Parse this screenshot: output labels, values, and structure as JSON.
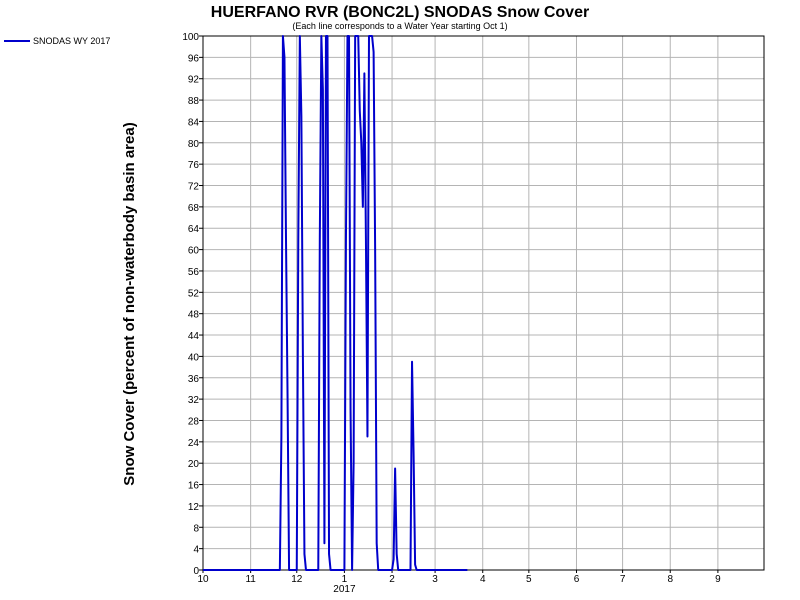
{
  "chart_data": {
    "type": "line",
    "title": "HUERFANO RVR (BONC2L) SNODAS Snow Cover",
    "subtitle": "(Each line corresponds to a Water Year starting Oct 1)",
    "ylabel": "Snow Cover (percent of non-waterbody basin area)",
    "xlabel": "",
    "ylim": [
      0,
      100
    ],
    "yticks": [
      0,
      4,
      8,
      12,
      16,
      20,
      24,
      28,
      32,
      36,
      40,
      44,
      48,
      52,
      56,
      60,
      64,
      68,
      72,
      76,
      80,
      84,
      88,
      92,
      96,
      100
    ],
    "xticks": [
      {
        "date": "2016-10-01",
        "label": "10"
      },
      {
        "date": "2016-11-01",
        "label": "11"
      },
      {
        "date": "2016-12-01",
        "label": "12"
      },
      {
        "date": "2017-01-01",
        "label": "1"
      },
      {
        "date": "2017-02-01",
        "label": "2"
      },
      {
        "date": "2017-03-01",
        "label": "3"
      },
      {
        "date": "2017-04-01",
        "label": "4"
      },
      {
        "date": "2017-05-01",
        "label": "5"
      },
      {
        "date": "2017-06-01",
        "label": "6"
      },
      {
        "date": "2017-07-01",
        "label": "7"
      },
      {
        "date": "2017-08-01",
        "label": "8"
      },
      {
        "date": "2017-09-01",
        "label": "9"
      }
    ],
    "year_label": {
      "date": "2017-01-01",
      "label": "2017"
    },
    "xlim": [
      "2016-10-01",
      "2017-10-01"
    ],
    "grid": true,
    "legend_position": "top-left",
    "series": [
      {
        "name": "SNODAS WY 2017",
        "color": "#0000cc",
        "points": [
          [
            "2016-10-01",
            0
          ],
          [
            "2016-11-20",
            0
          ],
          [
            "2016-11-21",
            25
          ],
          [
            "2016-11-22",
            100
          ],
          [
            "2016-11-23",
            96
          ],
          [
            "2016-11-24",
            62
          ],
          [
            "2016-11-25",
            33
          ],
          [
            "2016-11-26",
            0
          ],
          [
            "2016-12-01",
            0
          ],
          [
            "2016-12-02",
            62
          ],
          [
            "2016-12-03",
            100
          ],
          [
            "2016-12-04",
            85
          ],
          [
            "2016-12-05",
            40
          ],
          [
            "2016-12-06",
            3
          ],
          [
            "2016-12-07",
            0
          ],
          [
            "2016-12-15",
            0
          ],
          [
            "2016-12-16",
            62
          ],
          [
            "2016-12-17",
            100
          ],
          [
            "2016-12-18",
            90
          ],
          [
            "2016-12-19",
            5
          ],
          [
            "2016-12-20",
            100
          ],
          [
            "2016-12-21",
            100
          ],
          [
            "2016-12-22",
            3
          ],
          [
            "2016-12-23",
            0
          ],
          [
            "2017-01-01",
            0
          ],
          [
            "2017-01-02",
            62
          ],
          [
            "2017-01-03",
            100
          ],
          [
            "2017-01-04",
            100
          ],
          [
            "2017-01-05",
            30
          ],
          [
            "2017-01-06",
            0
          ],
          [
            "2017-01-07",
            20
          ],
          [
            "2017-01-08",
            100
          ],
          [
            "2017-01-09",
            100
          ],
          [
            "2017-01-10",
            100
          ],
          [
            "2017-01-11",
            86
          ],
          [
            "2017-01-12",
            80
          ],
          [
            "2017-01-13",
            68
          ],
          [
            "2017-01-14",
            93
          ],
          [
            "2017-01-15",
            62
          ],
          [
            "2017-01-16",
            25
          ],
          [
            "2017-01-17",
            100
          ],
          [
            "2017-01-18",
            100
          ],
          [
            "2017-01-19",
            100
          ],
          [
            "2017-01-20",
            97
          ],
          [
            "2017-01-21",
            60
          ],
          [
            "2017-01-22",
            5
          ],
          [
            "2017-01-23",
            0
          ],
          [
            "2017-02-01",
            0
          ],
          [
            "2017-02-02",
            2
          ],
          [
            "2017-02-03",
            19
          ],
          [
            "2017-02-04",
            3
          ],
          [
            "2017-02-05",
            0
          ],
          [
            "2017-02-13",
            0
          ],
          [
            "2017-02-14",
            39
          ],
          [
            "2017-02-15",
            22
          ],
          [
            "2017-02-16",
            1
          ],
          [
            "2017-02-17",
            0
          ],
          [
            "2017-03-22",
            0
          ]
        ]
      }
    ]
  }
}
